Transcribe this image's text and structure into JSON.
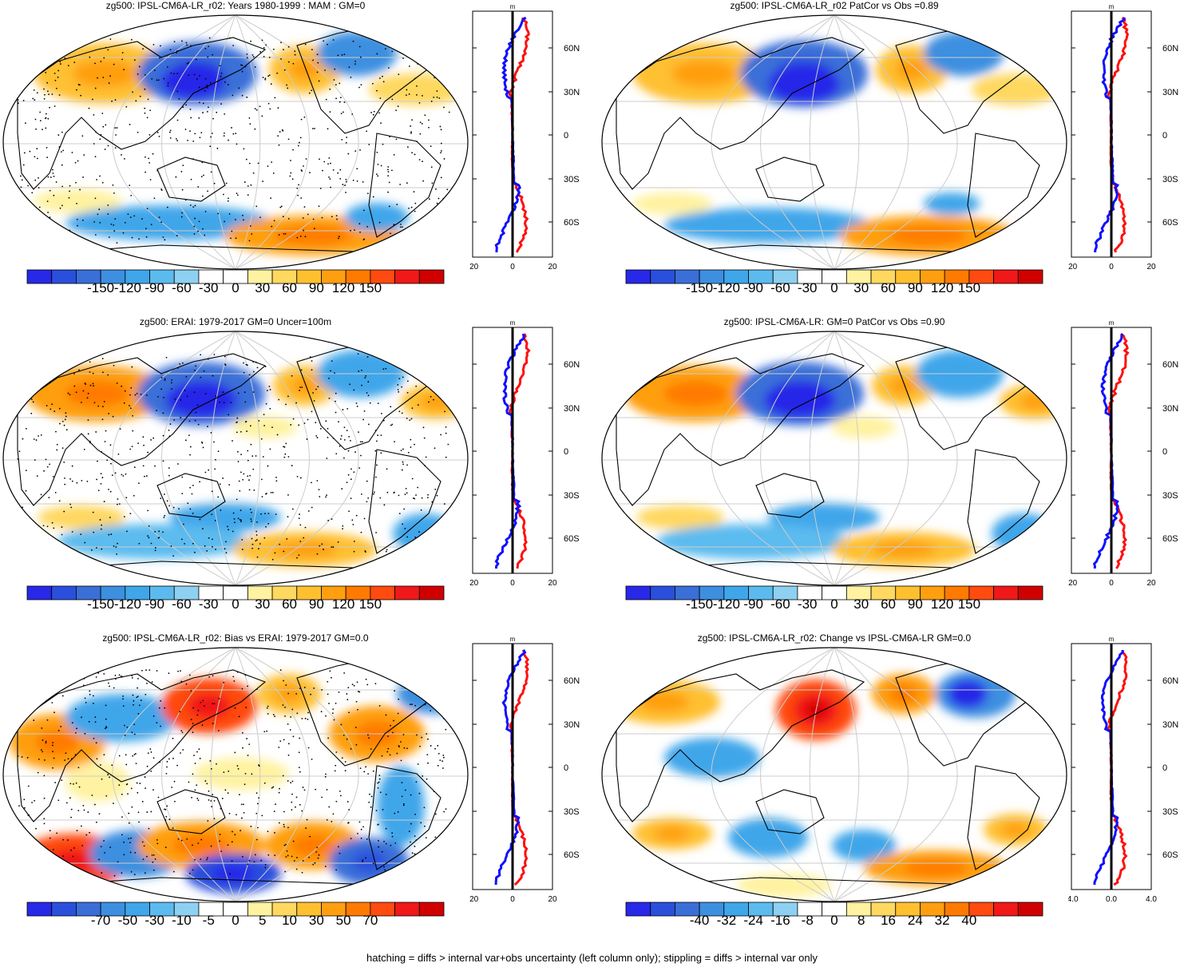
{
  "footer": "hatching = diffs > internal var+obs uncertainty (left column only); stippling = diffs > internal var only",
  "profile_units": "m",
  "lat_labels": [
    "60N",
    "30N",
    "0",
    "30S",
    "60S"
  ],
  "panels": [
    {
      "title": "zg500: IPSL-CM6A-LR_r02: Years 1980-1999 : MAM : GM=0",
      "colorbar": [
        "-150",
        "-120",
        "-90",
        "-60",
        "-30",
        "0",
        "30",
        "60",
        "90",
        "120",
        "150"
      ],
      "colors": [
        "#2828e8",
        "#2a4fdc",
        "#3a6fd8",
        "#3d8fe0",
        "#3fa6ea",
        "#5bbbef",
        "#8dd0f2",
        "#ffffff",
        "#ffffff",
        "#fff2a0",
        "#ffd860",
        "#ffc030",
        "#ff9f10",
        "#ff7a00",
        "#ff4a10",
        "#f01818",
        "#d00000"
      ],
      "profile_xticks": [
        "-20",
        "0",
        "20"
      ],
      "stipple": true
    },
    {
      "title": "zg500: IPSL-CM6A-LR_r02 PatCor vs Obs =0.89",
      "colorbar": [
        "-150",
        "-120",
        "-90",
        "-60",
        "-30",
        "0",
        "30",
        "60",
        "90",
        "120",
        "150"
      ],
      "colors": [
        "#2828e8",
        "#2a4fdc",
        "#3a6fd8",
        "#3d8fe0",
        "#3fa6ea",
        "#5bbbef",
        "#8dd0f2",
        "#ffffff",
        "#ffffff",
        "#fff2a0",
        "#ffd860",
        "#ffc030",
        "#ff9f10",
        "#ff7a00",
        "#ff4a10",
        "#f01818",
        "#d00000"
      ],
      "profile_xticks": [
        "-20",
        "0",
        "20"
      ],
      "stipple": false
    },
    {
      "title": "zg500: ERAI: 1979-2017 GM=0 Uncer=100m",
      "colorbar": [
        "-150",
        "-120",
        "-90",
        "-60",
        "-30",
        "0",
        "30",
        "60",
        "90",
        "120",
        "150"
      ],
      "colors": [
        "#2828e8",
        "#2a4fdc",
        "#3a6fd8",
        "#3d8fe0",
        "#3fa6ea",
        "#5bbbef",
        "#8dd0f2",
        "#ffffff",
        "#ffffff",
        "#fff2a0",
        "#ffd860",
        "#ffc030",
        "#ff9f10",
        "#ff7a00",
        "#ff4a10",
        "#f01818",
        "#d00000"
      ],
      "profile_xticks": [
        "-20",
        "0",
        "20"
      ],
      "stipple": true
    },
    {
      "title": "zg500: IPSL-CM6A-LR: GM=0 PatCor vs Obs =0.90",
      "colorbar": [
        "-150",
        "-120",
        "-90",
        "-60",
        "-30",
        "0",
        "30",
        "60",
        "90",
        "120",
        "150"
      ],
      "colors": [
        "#2828e8",
        "#2a4fdc",
        "#3a6fd8",
        "#3d8fe0",
        "#3fa6ea",
        "#5bbbef",
        "#8dd0f2",
        "#ffffff",
        "#ffffff",
        "#fff2a0",
        "#ffd860",
        "#ffc030",
        "#ff9f10",
        "#ff7a00",
        "#ff4a10",
        "#f01818",
        "#d00000"
      ],
      "profile_xticks": [
        "-20",
        "0",
        "20"
      ],
      "stipple": false
    },
    {
      "title": "zg500: IPSL-CM6A-LR_r02: Bias vs ERAI: 1979-2017 GM=0.0",
      "colorbar": [
        "-70",
        "-50",
        "-30",
        "-10",
        "-5",
        "0",
        "5",
        "10",
        "30",
        "50",
        "70"
      ],
      "colors": [
        "#2828e8",
        "#2a4fdc",
        "#3a6fd8",
        "#3d8fe0",
        "#3fa6ea",
        "#5bbbef",
        "#8dd0f2",
        "#ffffff",
        "#ffffff",
        "#fff2a0",
        "#ffd860",
        "#ffc030",
        "#ff9f10",
        "#ff7a00",
        "#ff4a10",
        "#f01818",
        "#d00000"
      ],
      "profile_xticks": [
        "-20",
        "0",
        "20"
      ],
      "stipple": true
    },
    {
      "title": "zg500: IPSL-CM6A-LR_r02: Change vs IPSL-CM6A-LR GM=0.0",
      "colorbar": [
        "-40",
        "-32",
        "-24",
        "-16",
        "-8",
        "0",
        "8",
        "16",
        "24",
        "32",
        "40"
      ],
      "colors": [
        "#2828e8",
        "#2a4fdc",
        "#3a6fd8",
        "#3d8fe0",
        "#3fa6ea",
        "#5bbbef",
        "#8dd0f2",
        "#ffffff",
        "#ffffff",
        "#fff2a0",
        "#ffd860",
        "#ffc030",
        "#ff9f10",
        "#ff7a00",
        "#ff4a10",
        "#f01818",
        "#d00000"
      ],
      "profile_xticks": [
        "-4.0",
        "0.0",
        "4.0"
      ],
      "stipple": false
    }
  ]
}
